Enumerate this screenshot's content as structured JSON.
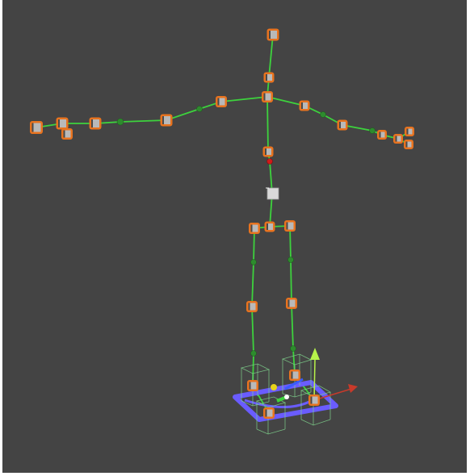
{
  "viewport": {
    "name": "3d-scene-viewport",
    "background": "#444444"
  },
  "colors": {
    "bone": "#3dd23d",
    "joint_fill": "#b9b9b9",
    "joint_border": "#e8731f",
    "ik_ground_plane": "#6a5cff",
    "gizmo_x_axis": "#c83a2a",
    "gizmo_y_axis": "#b6f24a",
    "gizmo_z_axis": "#3a5cff",
    "root_marker": "#d9d9d9"
  },
  "icons": [
    "gizmo-x-arrow-icon",
    "gizmo-y-arrow-icon",
    "gizmo-z-arrow-icon",
    "joint-box-icon",
    "root-bone-icon"
  ]
}
